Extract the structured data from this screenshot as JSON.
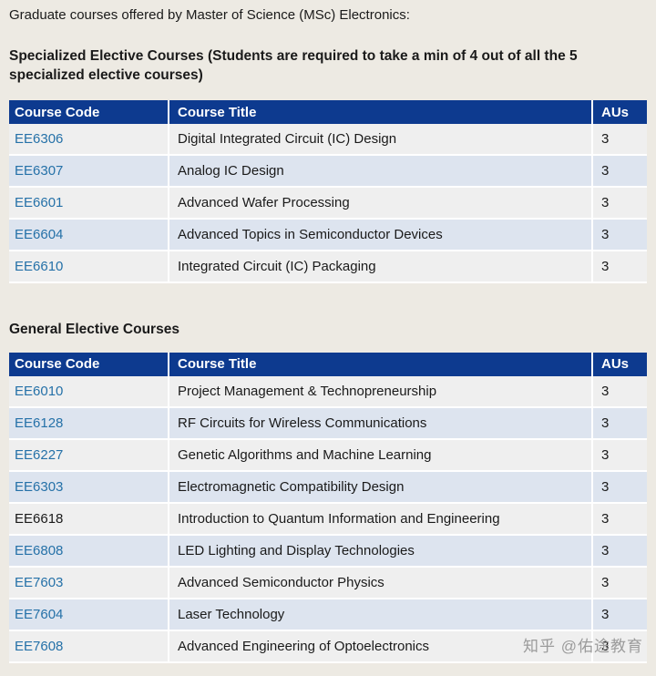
{
  "page": {
    "intro": "Graduate courses offered by Master of Science (MSc) Electronics:",
    "watermark": "知乎 @佑途教育"
  },
  "colors": {
    "page_bg": "#edeae3",
    "table_header_bg": "#0d3a8f",
    "table_header_text": "#ffffff",
    "row_odd_bg": "#efefef",
    "row_even_bg": "#dde4ef",
    "link_color": "#2571a8",
    "text_color": "#1a1a1a",
    "watermark_color": "#9b9b9b"
  },
  "sections": [
    {
      "heading": "Specialized Elective Courses (Students are required to take a min of 4 out of all the 5 specialized elective courses)",
      "columns": [
        "Course Code",
        "Course Title",
        "AUs"
      ],
      "rows": [
        {
          "code": "EE6306",
          "title": "Digital Integrated Circuit (IC) Design",
          "aus": "3",
          "link": true
        },
        {
          "code": "EE6307",
          "title": "Analog IC Design",
          "aus": "3",
          "link": true
        },
        {
          "code": "EE6601",
          "title": "Advanced Wafer Processing",
          "aus": "3",
          "link": true
        },
        {
          "code": "EE6604",
          "title": "Advanced Topics in Semiconductor Devices",
          "aus": "3",
          "link": true
        },
        {
          "code": "EE6610",
          "title": "Integrated Circuit (IC) Packaging",
          "aus": "3",
          "link": true
        }
      ]
    },
    {
      "heading": "General Elective Courses",
      "columns": [
        "Course Code",
        "Course Title",
        "AUs"
      ],
      "rows": [
        {
          "code": "EE6010",
          "title": "Project Management & Technopreneurship",
          "aus": "3",
          "link": true
        },
        {
          "code": "EE6128",
          "title": "RF Circuits for Wireless Communications",
          "aus": "3",
          "link": true
        },
        {
          "code": "EE6227",
          "title": "Genetic Algorithms and Machine Learning",
          "aus": "3",
          "link": true
        },
        {
          "code": "EE6303",
          "title": "Electromagnetic Compatibility Design",
          "aus": "3",
          "link": true
        },
        {
          "code": "EE6618",
          "title": "Introduction to Quantum Information and Engineering",
          "aus": "3",
          "link": false
        },
        {
          "code": "EE6808",
          "title": "LED Lighting and Display Technologies",
          "aus": "3",
          "link": true
        },
        {
          "code": "EE7603",
          "title": "Advanced Semiconductor Physics",
          "aus": "3",
          "link": true
        },
        {
          "code": "EE7604",
          "title": "Laser Technology",
          "aus": "3",
          "link": true
        },
        {
          "code": "EE7608",
          "title": "Advanced Engineering of Optoelectronics",
          "aus": "3",
          "link": true
        }
      ]
    }
  ]
}
